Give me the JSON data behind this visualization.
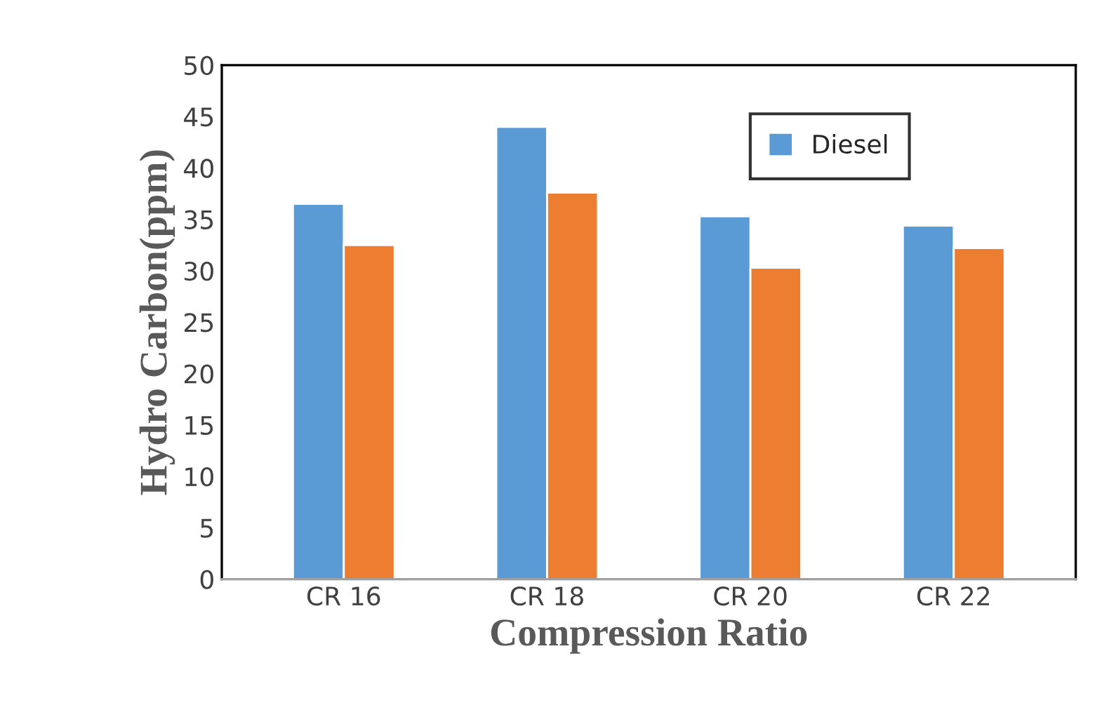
{
  "chart_data": {
    "type": "bar",
    "xlabel": "Compression Ratio",
    "ylabel": "Hydro Carbon(ppm)",
    "categories": [
      "CR 16",
      "CR 18",
      "CR 20",
      "CR 22"
    ],
    "series": [
      {
        "name": "Diesel",
        "color": "#5b9bd5",
        "values": [
          36.5,
          44.0,
          35.3,
          34.4
        ]
      },
      {
        "color": "#ed7d31",
        "values": [
          32.5,
          37.6,
          30.3,
          32.2
        ]
      }
    ],
    "ylim": [
      0,
      50
    ],
    "yticks": [
      0,
      5,
      10,
      15,
      20,
      25,
      30,
      35,
      40,
      45,
      50
    ],
    "grid": false,
    "legend": "top right"
  }
}
